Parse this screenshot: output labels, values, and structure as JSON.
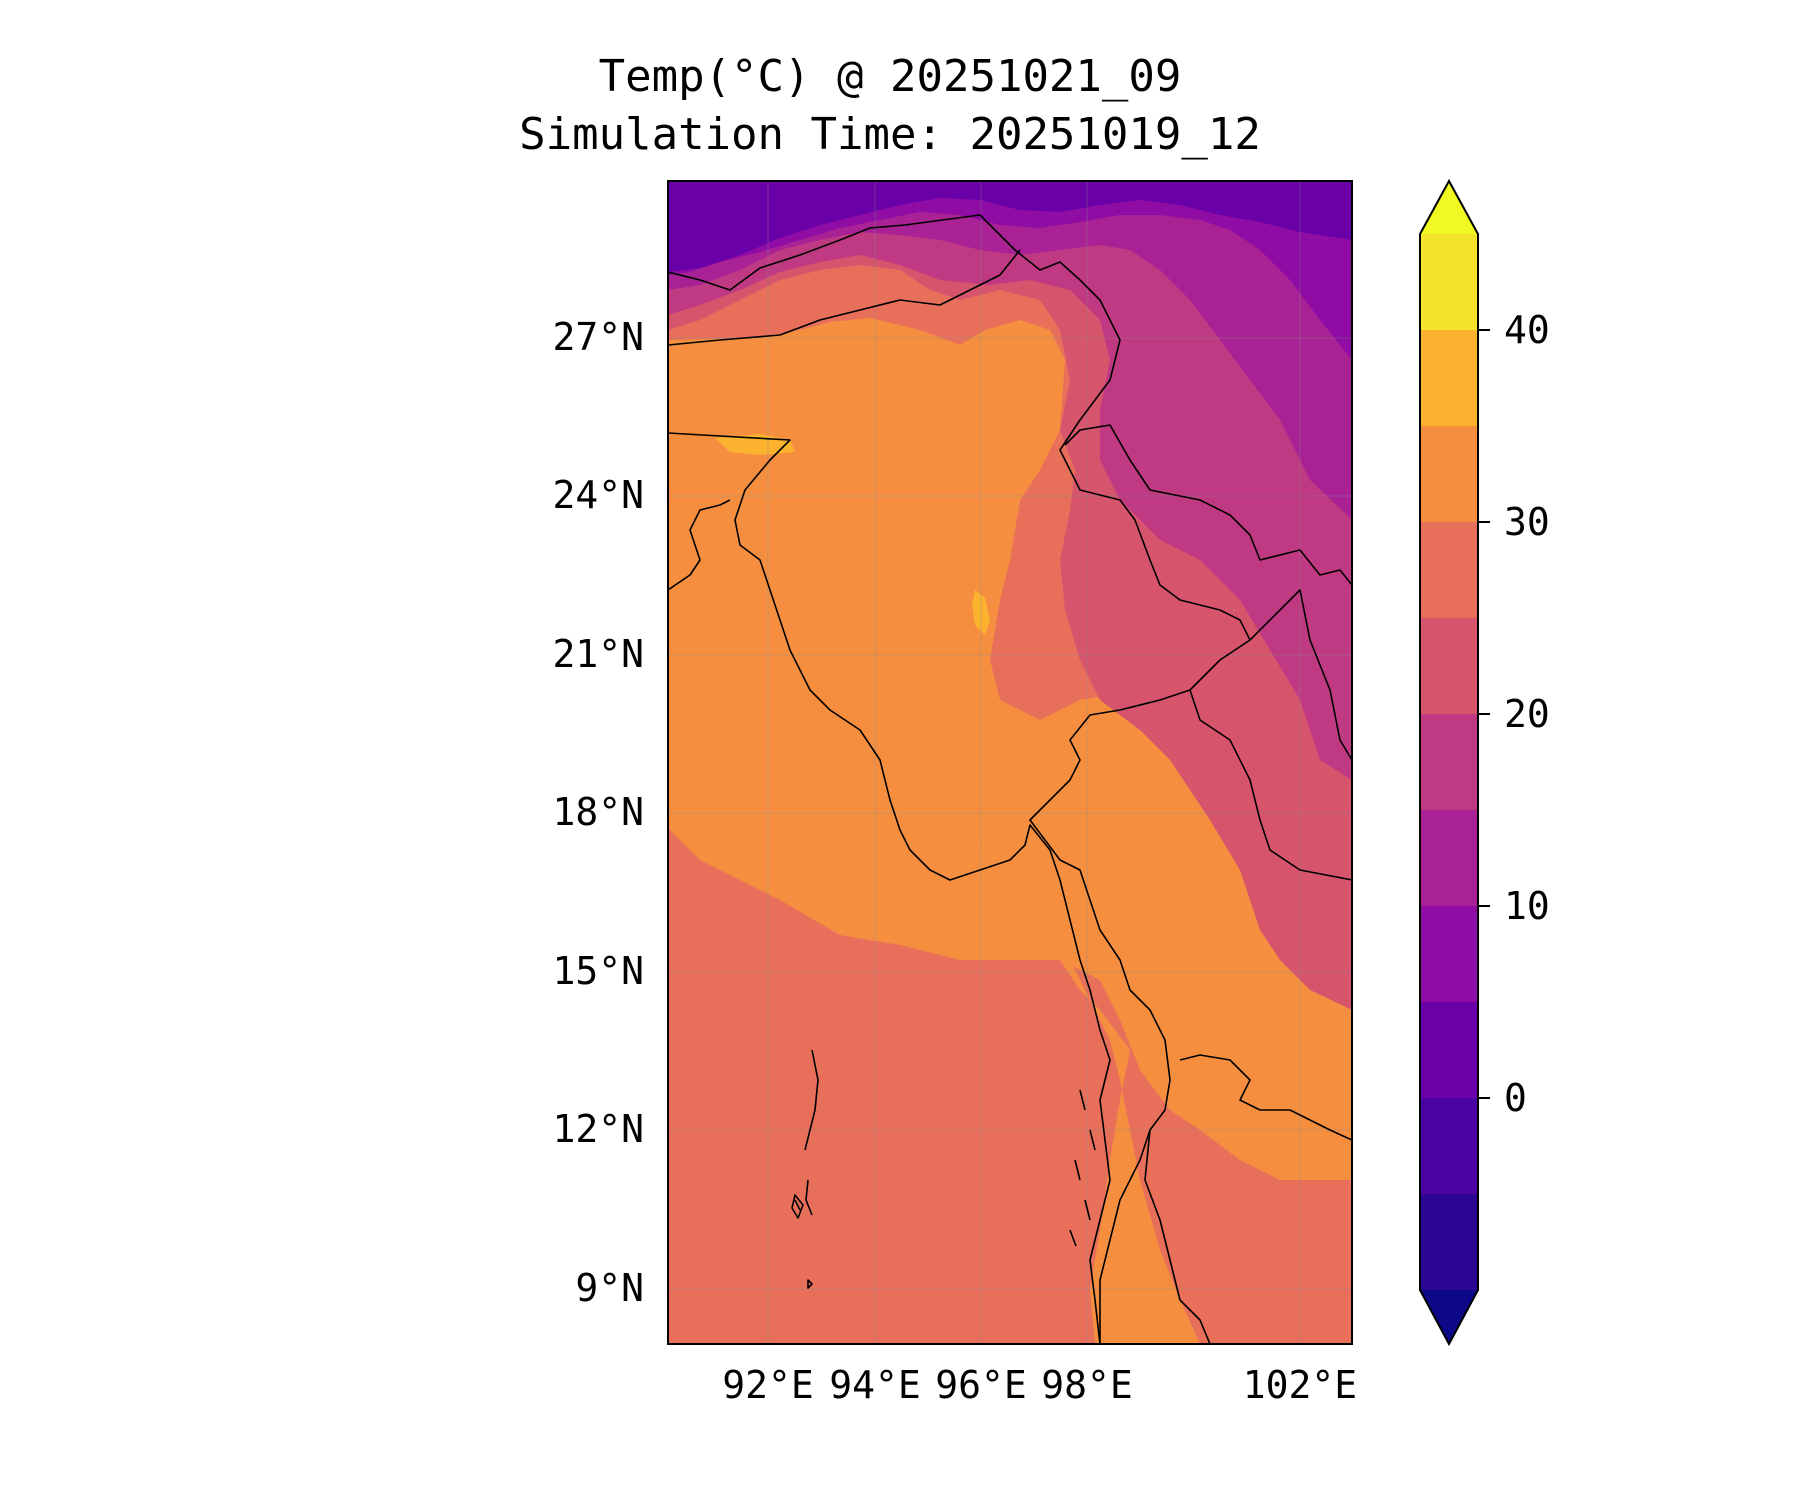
{
  "title": {
    "line1": "Temp(°C) @ 20251021_09",
    "line2": "Simulation Time: 20251019_12"
  },
  "map": {
    "lat_labels": [
      "27°N",
      "24°N",
      "21°N",
      "18°N",
      "15°N",
      "12°N",
      "9°N"
    ],
    "lon_labels": [
      "92°E",
      "94°E",
      "96°E",
      "98°E",
      "102°E"
    ],
    "lon_range": [
      90.2,
      103.1
    ],
    "lat_range": [
      8.0,
      30.0
    ]
  },
  "colorbar": {
    "ticks": [
      "0",
      "10",
      "20",
      "30",
      "40"
    ],
    "levels": [
      -5,
      0,
      5,
      10,
      15,
      20,
      25,
      30,
      35,
      40,
      45
    ],
    "colors": [
      "#0d0887",
      "#2c0594",
      "#4903a0",
      "#6a00a8",
      "#8f0da4",
      "#a82296",
      "#c03a83",
      "#d6556d",
      "#e8705b",
      "#f58f3f",
      "#fdb22f",
      "#f3e52a",
      "#f0f921"
    ],
    "extend": "both"
  }
}
